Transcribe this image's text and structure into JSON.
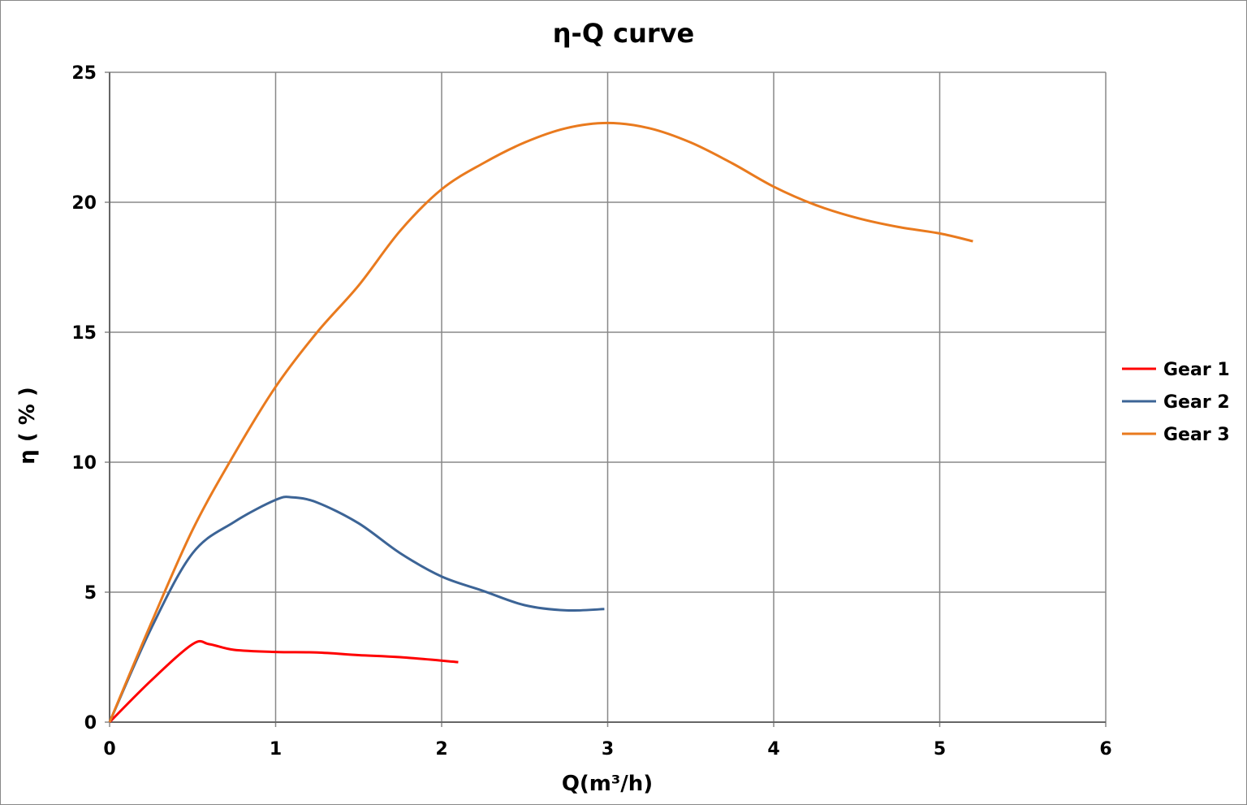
{
  "chart_data": {
    "type": "line",
    "title": "η-Q  curve",
    "xlabel": "Q(m³/h)",
    "ylabel": "η ( % )",
    "xlim": [
      0,
      6
    ],
    "ylim": [
      0,
      25
    ],
    "xticks": [
      "0",
      "1",
      "2",
      "3",
      "4",
      "5",
      "6"
    ],
    "yticks": [
      "0",
      "5",
      "10",
      "15",
      "20",
      "25"
    ],
    "grid": true,
    "legend_position": "right",
    "series": [
      {
        "name": "Gear 1",
        "color": "#ff0000",
        "x": [
          0,
          0.25,
          0.5,
          0.6,
          0.75,
          1.0,
          1.25,
          1.5,
          1.75,
          2.1
        ],
        "y": [
          0,
          1.6,
          3.0,
          3.0,
          2.78,
          2.7,
          2.68,
          2.58,
          2.5,
          2.31
        ]
      },
      {
        "name": "Gear 2",
        "color": "#3c6496",
        "x": [
          0,
          0.25,
          0.5,
          0.75,
          1.0,
          1.1,
          1.25,
          1.5,
          1.75,
          2.0,
          2.25,
          2.5,
          2.75,
          2.98
        ],
        "y": [
          0,
          3.6,
          6.5,
          7.7,
          8.55,
          8.65,
          8.45,
          7.65,
          6.5,
          5.6,
          5.05,
          4.5,
          4.3,
          4.35
        ]
      },
      {
        "name": "Gear 3",
        "color": "#e97a1e",
        "x": [
          0,
          0.25,
          0.5,
          0.75,
          1.0,
          1.25,
          1.5,
          1.75,
          2.0,
          2.25,
          2.5,
          2.75,
          3.0,
          3.25,
          3.5,
          3.75,
          4.0,
          4.25,
          4.5,
          4.75,
          5.0,
          5.2
        ],
        "y": [
          0,
          3.8,
          7.4,
          10.3,
          12.9,
          15.0,
          16.8,
          18.9,
          20.5,
          21.5,
          22.3,
          22.85,
          23.05,
          22.85,
          22.3,
          21.5,
          20.6,
          19.9,
          19.4,
          19.05,
          18.8,
          18.5
        ]
      }
    ]
  }
}
